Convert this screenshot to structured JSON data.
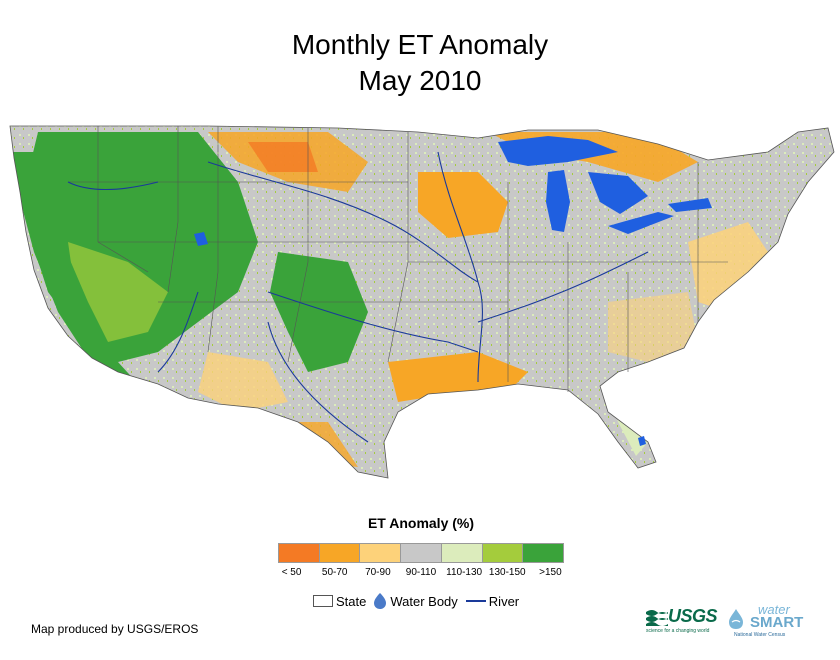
{
  "title": {
    "line1": "Monthly ET Anomaly",
    "line2": "May 2010"
  },
  "legend": {
    "title": "ET Anomaly (%)",
    "classes": [
      {
        "label": "< 50",
        "color": "#f47a24"
      },
      {
        "label": "50-70",
        "color": "#f7a626"
      },
      {
        "label": "70-90",
        "color": "#fdd27a"
      },
      {
        "label": "90-110",
        "color": "#c8c8c8"
      },
      {
        "label": "110-130",
        "color": "#dcecbc"
      },
      {
        "label": "130-150",
        "color": "#a4cc3c"
      },
      {
        "label": ">150",
        "color": "#3aa33a"
      }
    ]
  },
  "layers": {
    "state": "State",
    "water_body": "Water Body",
    "river": "River"
  },
  "colors": {
    "water": "#1f5fe0",
    "river": "#1a3a9a",
    "state_line": "#555555"
  },
  "credit": "Map produced by USGS/EROS",
  "logos": {
    "usgs": "USGS",
    "usgs_tagline": "science for a changing world",
    "watersmart_top": "water",
    "watersmart_bottom": "SMART",
    "watersmart_tagline": "National Water Census"
  }
}
